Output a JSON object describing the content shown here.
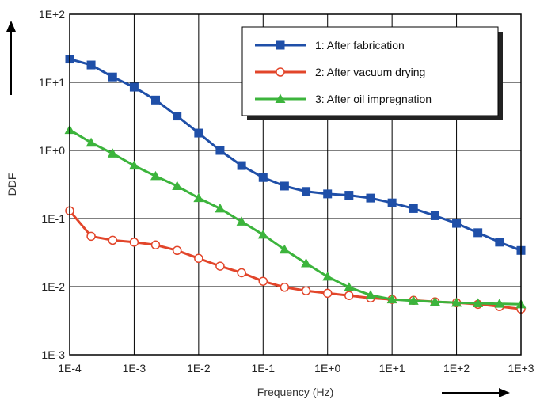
{
  "chart_data": {
    "type": "line",
    "xlabel": "Frequency (Hz)",
    "ylabel": "DDF",
    "xscale": "log",
    "yscale": "log",
    "xlim": [
      0.0001,
      1000
    ],
    "ylim": [
      0.001,
      100
    ],
    "x_ticks": [
      "1E-4",
      "1E-3",
      "1E-2",
      "1E-1",
      "1E+0",
      "1E+1",
      "1E+2",
      "1E+3"
    ],
    "y_ticks": [
      "1E-3",
      "1E-2",
      "1E-1",
      "1E+0",
      "1E+1",
      "1E+2"
    ],
    "grid": true,
    "legend_position": "top-right",
    "series": [
      {
        "name": "1: After fabrication",
        "color": "#1f4fa8",
        "marker": "square",
        "x": [
          0.0001,
          0.000215,
          0.000464,
          0.001,
          0.00215,
          0.00464,
          0.01,
          0.0215,
          0.0464,
          0.1,
          0.215,
          0.464,
          1,
          2.15,
          4.64,
          10,
          21.5,
          46.4,
          100,
          215,
          464,
          1000
        ],
        "y": [
          22,
          18,
          12,
          8.5,
          5.5,
          3.2,
          1.8,
          1.0,
          0.6,
          0.4,
          0.3,
          0.25,
          0.23,
          0.22,
          0.2,
          0.17,
          0.14,
          0.11,
          0.085,
          0.062,
          0.045,
          0.034
        ]
      },
      {
        "name": "2: After vacuum drying",
        "color": "#e2452a",
        "marker": "circle-open",
        "x": [
          0.0001,
          0.000215,
          0.000464,
          0.001,
          0.00215,
          0.00464,
          0.01,
          0.0215,
          0.0464,
          0.1,
          0.215,
          0.464,
          1,
          2.15,
          4.64,
          10,
          21.5,
          46.4,
          100,
          215,
          464,
          1000
        ],
        "y": [
          0.13,
          0.055,
          0.048,
          0.045,
          0.041,
          0.034,
          0.026,
          0.02,
          0.016,
          0.012,
          0.0098,
          0.0087,
          0.008,
          0.0074,
          0.0068,
          0.0065,
          0.0063,
          0.006,
          0.0058,
          0.0055,
          0.0051,
          0.0047
        ]
      },
      {
        "name": "3: After oil impregnation",
        "color": "#3cb43c",
        "marker": "triangle",
        "x": [
          0.0001,
          0.000215,
          0.000464,
          0.001,
          0.00215,
          0.00464,
          0.01,
          0.0215,
          0.0464,
          0.1,
          0.215,
          0.464,
          1,
          2.15,
          4.64,
          10,
          21.5,
          46.4,
          100,
          215,
          464,
          1000
        ],
        "y": [
          2.0,
          1.3,
          0.9,
          0.6,
          0.42,
          0.3,
          0.2,
          0.14,
          0.09,
          0.058,
          0.035,
          0.022,
          0.014,
          0.0098,
          0.0075,
          0.0065,
          0.0062,
          0.006,
          0.0058,
          0.0057,
          0.0056,
          0.0055
        ]
      }
    ]
  }
}
